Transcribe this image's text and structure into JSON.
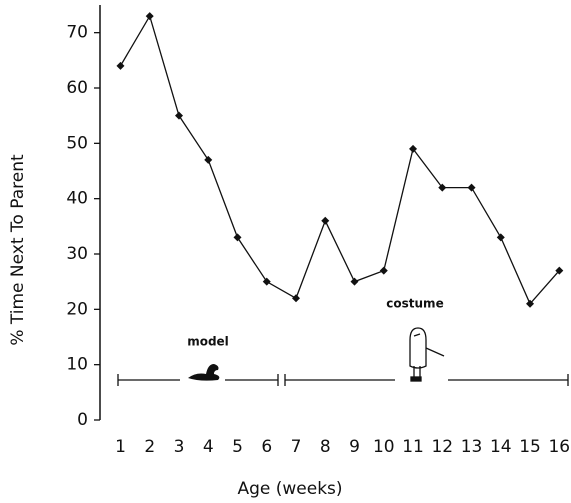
{
  "chart_data": {
    "type": "line",
    "x": [
      1,
      2,
      3,
      4,
      5,
      6,
      7,
      8,
      9,
      10,
      11,
      12,
      13,
      14,
      15,
      16
    ],
    "values": [
      64,
      73,
      55,
      47,
      33,
      25,
      22,
      36,
      25,
      27,
      49,
      42,
      42,
      33,
      21,
      27
    ],
    "color": "#111111",
    "xlim": [
      0.3,
      16.4
    ],
    "xticks": [
      1,
      2,
      3,
      4,
      5,
      6,
      7,
      8,
      9,
      10,
      11,
      12,
      13,
      14,
      15,
      16
    ],
    "ylim": [
      0,
      75
    ],
    "yticks": [
      0,
      10,
      20,
      30,
      40,
      50,
      60,
      70
    ],
    "xlabel": "Age (weeks)",
    "ylabel": "% Time Next To Parent",
    "annotations": [
      "model",
      "costume"
    ]
  }
}
